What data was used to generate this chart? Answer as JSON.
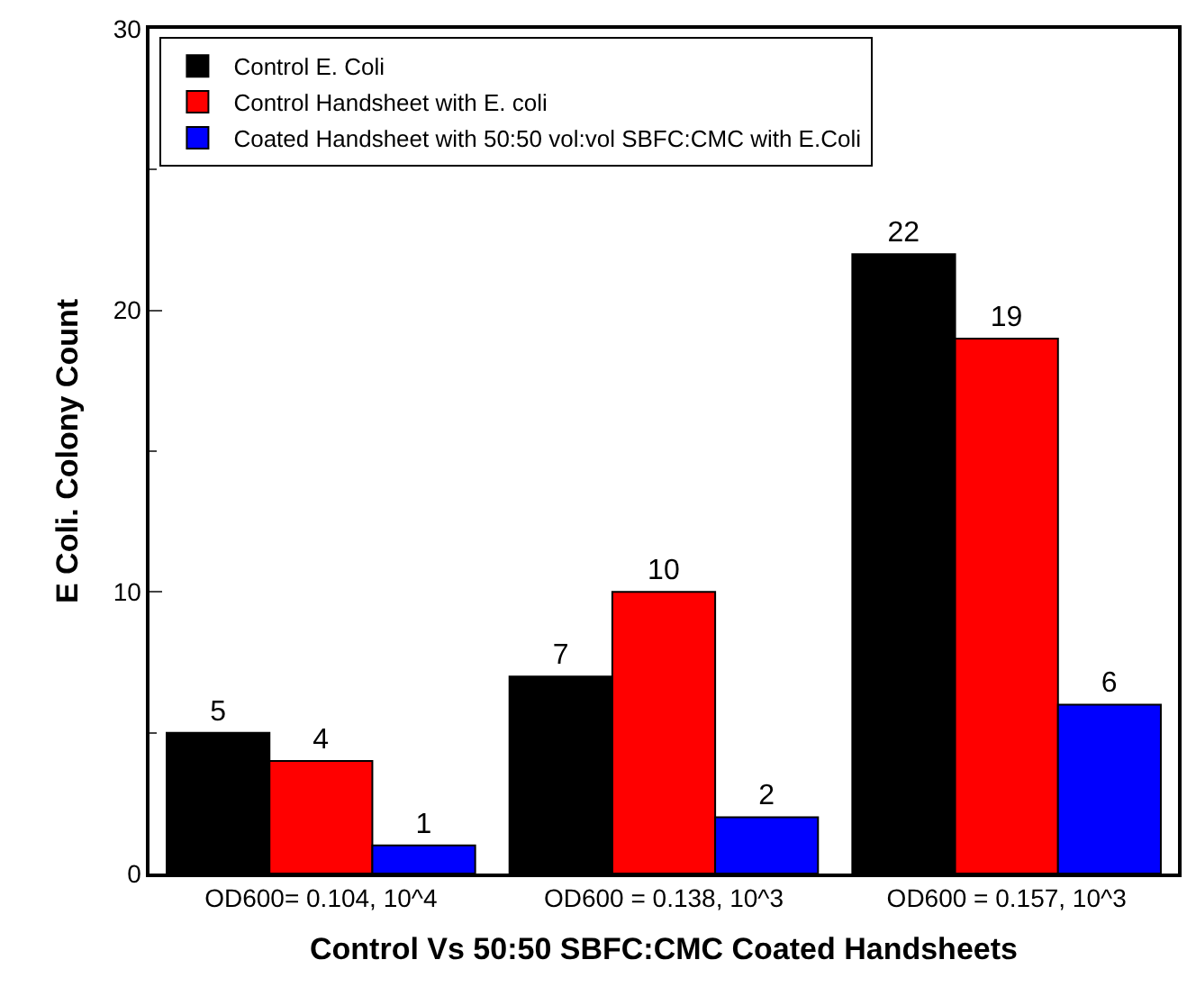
{
  "chart_data": {
    "type": "bar",
    "xlabel": "Control Vs 50:50 SBFC:CMC Coated Handsheets",
    "ylabel": "E Coli. Colony Count",
    "categories": [
      "OD600= 0.104, 10^4",
      "OD600 = 0.138, 10^3",
      "OD600 = 0.157, 10^3"
    ],
    "series": [
      {
        "name": "Control E. Coli",
        "color": "#000000",
        "values": [
          5,
          7,
          22
        ]
      },
      {
        "name": "Control Handsheet with E. coli",
        "color": "#ff0000",
        "values": [
          4,
          10,
          19
        ]
      },
      {
        "name": "Coated Handsheet with 50:50 vol:vol SBFC:CMC with E.Coli",
        "color": "#0000ff",
        "values": [
          1,
          2,
          6
        ]
      }
    ],
    "ylim": [
      0,
      30
    ],
    "yticks": [
      0,
      10,
      20,
      30
    ],
    "legend": "top left",
    "data_labels": true
  }
}
